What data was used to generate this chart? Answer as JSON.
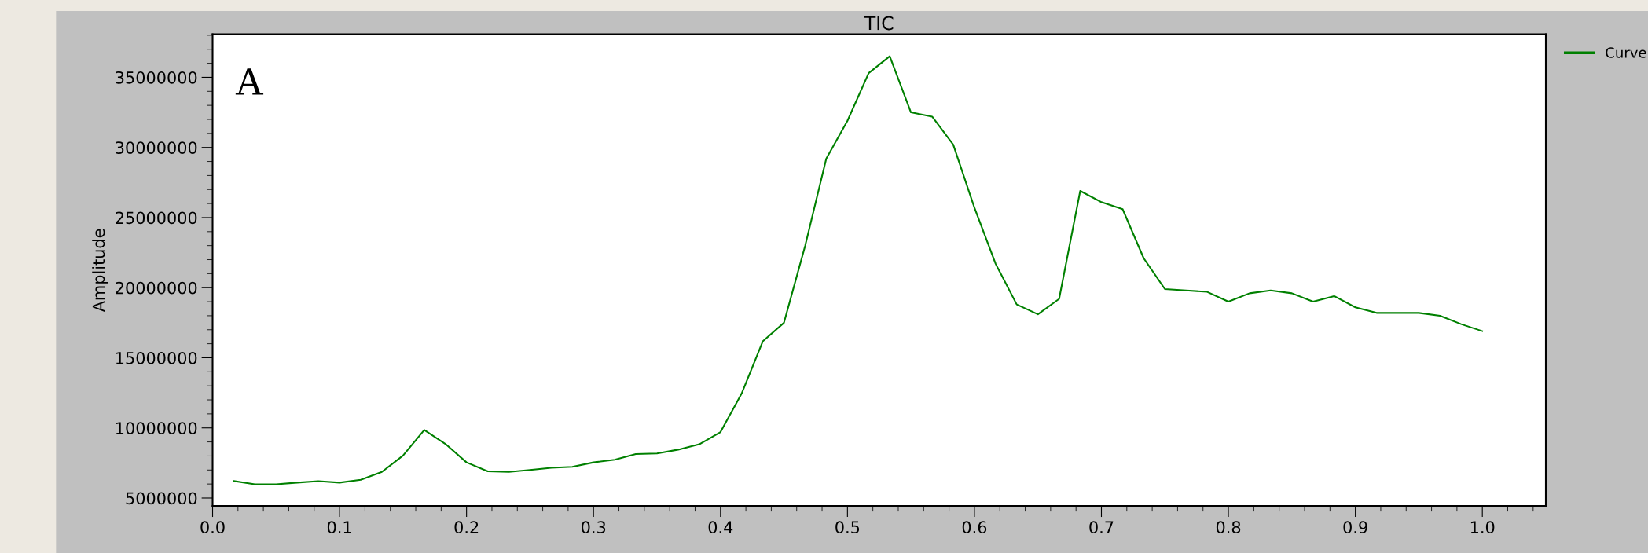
{
  "chart_data": {
    "type": "line",
    "title": "TIC",
    "ylabel": "Amplitude",
    "annotations": [
      "A"
    ],
    "x": [
      0.0167,
      0.0333,
      0.05,
      0.0667,
      0.0833,
      0.1,
      0.1167,
      0.1333,
      0.15,
      0.1667,
      0.1833,
      0.2,
      0.2167,
      0.2333,
      0.25,
      0.2667,
      0.2833,
      0.3,
      0.3167,
      0.3333,
      0.35,
      0.3667,
      0.3833,
      0.4,
      0.4167,
      0.4333,
      0.45,
      0.4667,
      0.4833,
      0.5,
      0.5167,
      0.5333,
      0.55,
      0.5667,
      0.5833,
      0.6,
      0.6167,
      0.6333,
      0.65,
      0.6667,
      0.6833,
      0.7,
      0.7167,
      0.7333,
      0.75,
      0.7667,
      0.7833,
      0.8,
      0.8167,
      0.8333,
      0.85,
      0.8667,
      0.8833,
      0.9,
      0.9167,
      0.9333,
      0.95,
      0.9667,
      0.9833,
      1.0
    ],
    "series": [
      {
        "name": "Curve",
        "color": "#008000",
        "values": [
          6210000,
          5980000,
          5980000,
          6100000,
          6200000,
          6100000,
          6300000,
          6860000,
          8030000,
          9850000,
          8860000,
          7540000,
          6900000,
          6860000,
          7000000,
          7160000,
          7230000,
          7540000,
          7730000,
          8140000,
          8180000,
          8450000,
          8830000,
          9700000,
          12460000,
          16170000,
          17500000,
          23000000,
          29200000,
          31900000,
          35300000,
          36500000,
          32500000,
          32200000,
          30200000,
          25700000,
          21700000,
          18800000,
          18100000,
          19200000,
          26900000,
          26100000,
          25600000,
          22100000,
          19900000,
          19800000,
          19700000,
          19000000,
          19600000,
          19800000,
          19600000,
          19000000,
          19400000,
          18600000,
          18200000,
          18200000,
          18200000,
          18000000,
          17400000,
          16900000
        ]
      }
    ],
    "xlim": [
      0.0,
      1.05
    ],
    "xticks": [
      {
        "value": 0.0,
        "label": "0.0"
      },
      {
        "value": 0.1,
        "label": "0.1"
      },
      {
        "value": 0.2,
        "label": "0.2"
      },
      {
        "value": 0.3,
        "label": "0.3"
      },
      {
        "value": 0.4,
        "label": "0.4"
      },
      {
        "value": 0.5,
        "label": "0.5"
      },
      {
        "value": 0.6,
        "label": "0.6"
      },
      {
        "value": 0.7,
        "label": "0.7"
      },
      {
        "value": 0.8,
        "label": "0.8"
      },
      {
        "value": 0.9,
        "label": "0.9"
      },
      {
        "value": 1.0,
        "label": "1.0"
      }
    ],
    "ylim": [
      4430000,
      38070000
    ],
    "yticks": [
      5000000,
      10000000,
      15000000,
      20000000,
      25000000,
      30000000,
      35000000
    ],
    "grid": false,
    "legend": "top right",
    "marker": "none",
    "line_style": "solid"
  }
}
